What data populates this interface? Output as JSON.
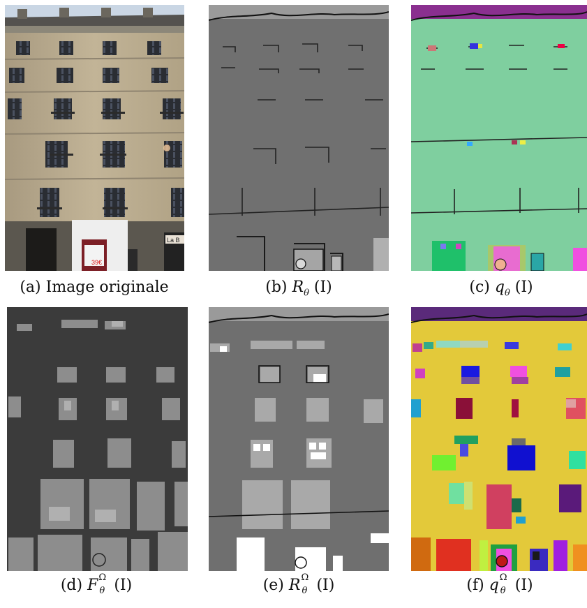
{
  "figure": {
    "panels": [
      {
        "id": "a",
        "caption_prefix": "(a)",
        "caption_text": "Image originale"
      },
      {
        "id": "b",
        "caption_prefix": "(b)",
        "caption_symbol": "R",
        "caption_sub": "θ",
        "caption_arg": "(I)"
      },
      {
        "id": "c",
        "caption_prefix": "(c)",
        "caption_symbol": "q",
        "caption_sub": "θ",
        "caption_arg": "(I)"
      },
      {
        "id": "d",
        "caption_prefix": "(d)",
        "caption_symbol": "F",
        "caption_sup": "Ω",
        "caption_sub": "θ",
        "caption_arg": "(I)"
      },
      {
        "id": "e",
        "caption_prefix": "(e)",
        "caption_symbol": "R",
        "caption_sup": "Ω",
        "caption_sub": "θ",
        "caption_arg": "(I)"
      },
      {
        "id": "f",
        "caption_prefix": "(f)",
        "caption_symbol": "q",
        "caption_sup": "Ω",
        "caption_sub": "θ",
        "caption_arg": "(I)"
      }
    ],
    "photo_signs": {
      "shop_left": "La B",
      "price": "39€"
    },
    "colors": {
      "facade": "#b9a98c",
      "regions_gray": "#6f6f6f",
      "quantized_green": "#7fcf9f",
      "label_dark": "#3b3b3b",
      "segmentation_yellow": "#e3c93a"
    }
  }
}
